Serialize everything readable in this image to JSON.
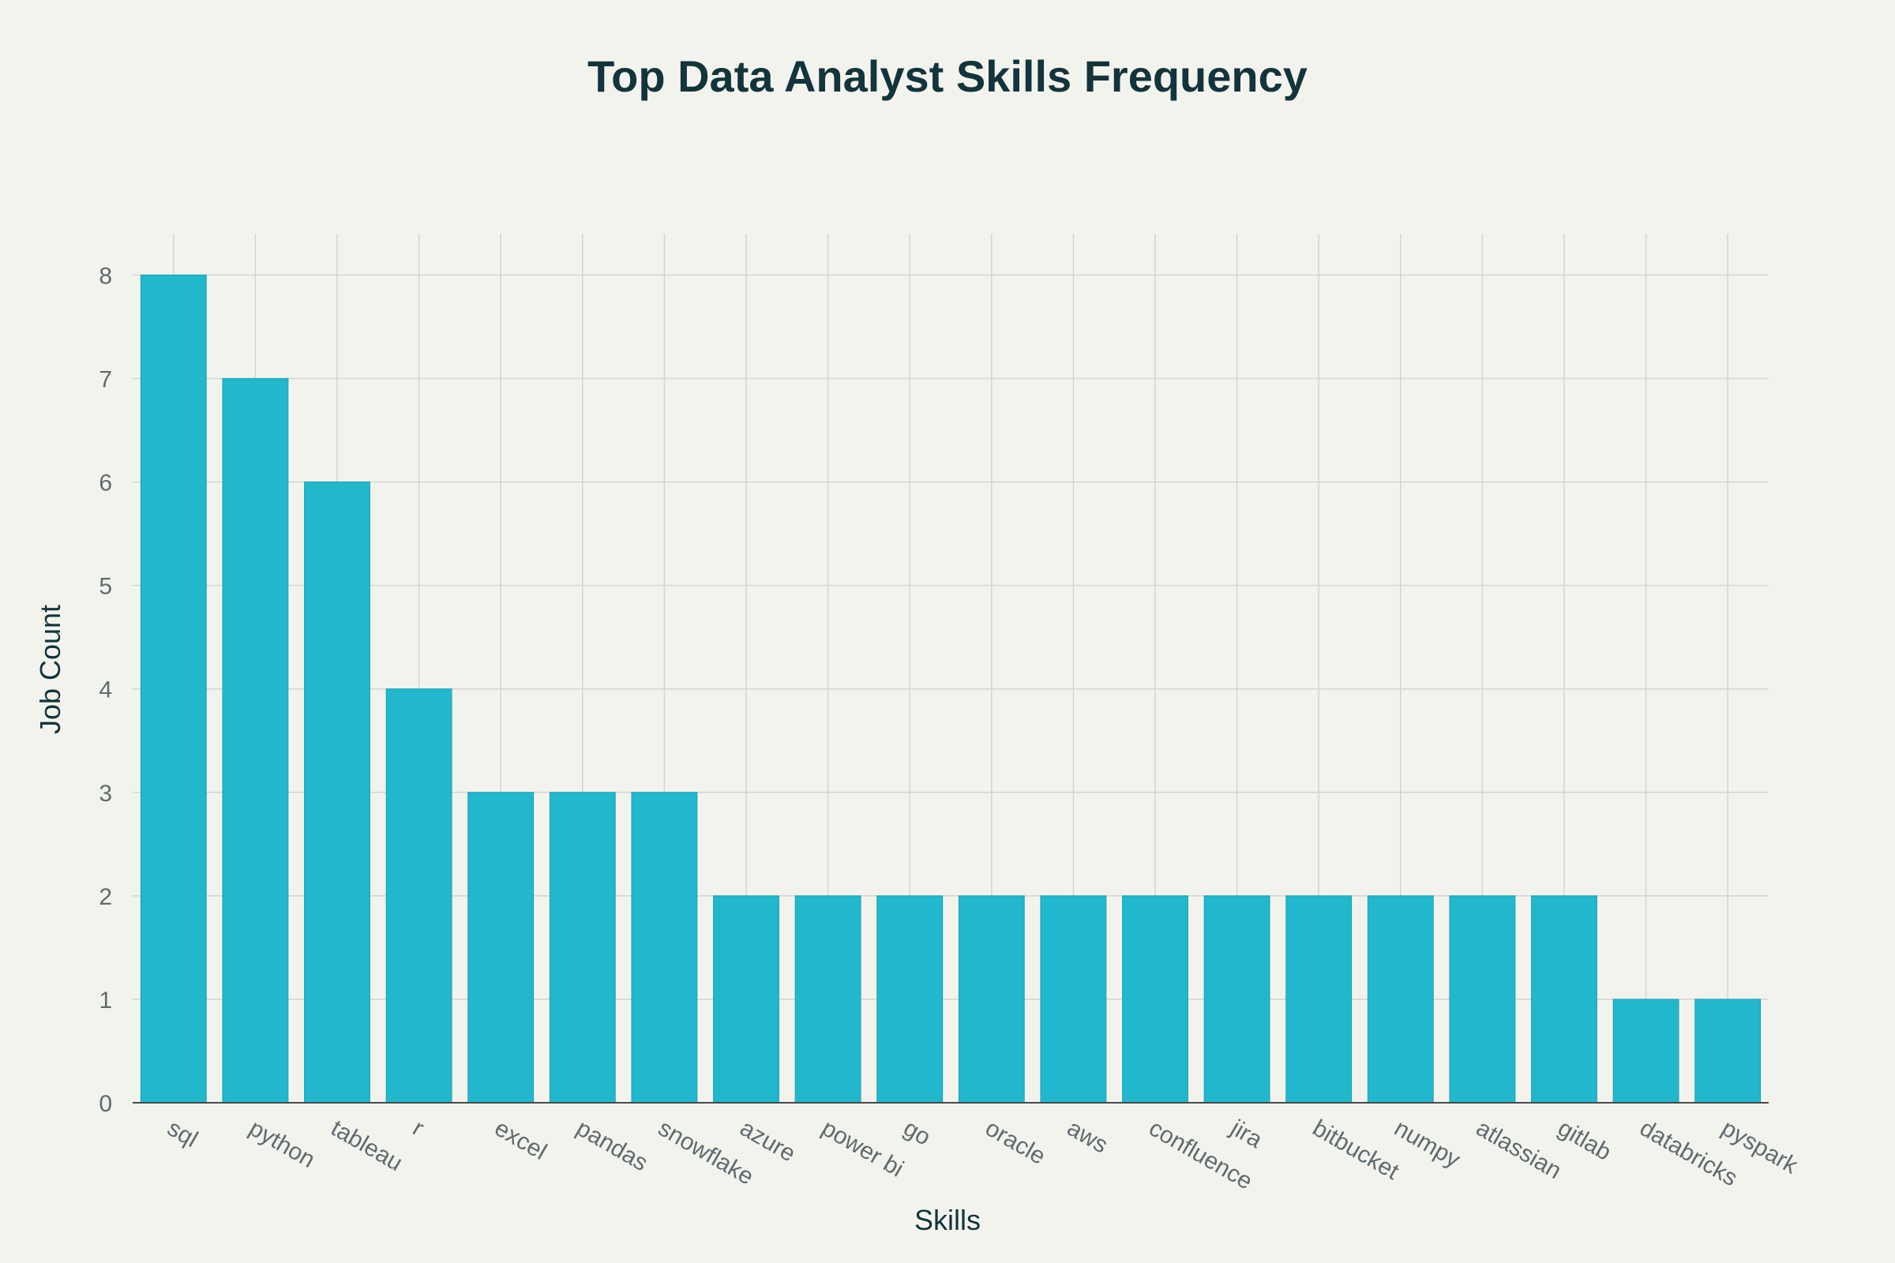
{
  "chart_data": {
    "type": "bar",
    "title": "Top Data Analyst Skills Frequency",
    "xlabel": "Skills",
    "ylabel": "Job Count",
    "categories": [
      "sql",
      "python",
      "tableau",
      "r",
      "excel",
      "pandas",
      "snowflake",
      "azure",
      "power bi",
      "go",
      "oracle",
      "aws",
      "confluence",
      "jira",
      "bitbucket",
      "numpy",
      "atlassian",
      "gitlab",
      "databricks",
      "pyspark"
    ],
    "values": [
      8,
      7,
      6,
      4,
      3,
      3,
      3,
      2,
      2,
      2,
      2,
      2,
      2,
      2,
      2,
      2,
      2,
      2,
      1,
      1
    ],
    "ylim": [
      0,
      8.4
    ],
    "yticks": [
      0,
      1,
      2,
      3,
      4,
      5,
      6,
      7,
      8
    ],
    "grid": true,
    "legend": "none",
    "bar_color": "#21b8cd"
  }
}
